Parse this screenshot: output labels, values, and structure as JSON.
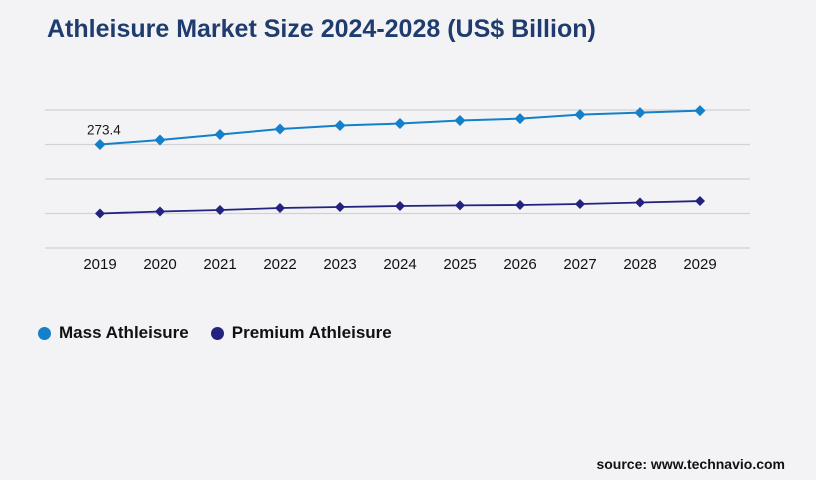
{
  "page": {
    "background": "#f3f3f5"
  },
  "header": {
    "title": "Athleisure Market Size 2024-2028 (US$ Billion)",
    "title_color": "#1f3c6e"
  },
  "chart_data": {
    "type": "line",
    "title": "Athleisure Market Size 2024-2028 (US$ Billion)",
    "categories": [
      "2019",
      "2020",
      "2021",
      "2022",
      "2023",
      "2024",
      "2025",
      "2026",
      "2027",
      "2028",
      "2029"
    ],
    "series": [
      {
        "name": "Mass Athleisure",
        "color": "#1580ca",
        "marker": "diamond",
        "values": [
          273.4,
          286.4,
          302.3,
          318.2,
          328.3,
          334.1,
          342.8,
          348.5,
          360.1,
          365.9,
          371.7
        ]
      },
      {
        "name": "Premium Athleisure",
        "color": "#23237f",
        "marker": "diamond",
        "values": [
          73.4,
          79.2,
          83.5,
          89.3,
          92.2,
          95.1,
          97.0,
          98.0,
          100.9,
          105.2,
          109.5
        ]
      }
    ],
    "data_labels": [
      {
        "series_index": 0,
        "category_index": 0,
        "text": "273.4"
      }
    ],
    "xlabel": "",
    "ylabel": "",
    "ylim": [
      -26.6,
      373.4
    ],
    "gridline_values": [
      373.4,
      273.4,
      173.4,
      73.4,
      -26.6
    ],
    "grid": "horizontal-only",
    "y_tick_labels_shown": false,
    "legend_position": "bottom-left",
    "gridline_color": "#d2d2d5",
    "tick_label_color": "#111111"
  },
  "legend": {
    "items": [
      {
        "label": "Mass Athleisure",
        "color": "#1580ca"
      },
      {
        "label": "Premium Athleisure",
        "color": "#23237f"
      }
    ]
  },
  "footer": {
    "source": "source: www.technavio.com"
  }
}
